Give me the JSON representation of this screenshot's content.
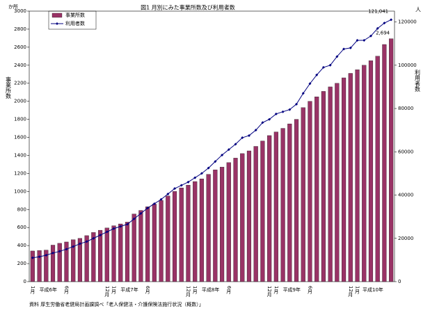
{
  "chart_data": {
    "type": "bar-line",
    "title": "図1 月別にみた事業所数及び利用者数",
    "y_unit": "か所",
    "y_label": "事業所数",
    "y2_unit": "人",
    "y2_label": "利用者数",
    "source": "資料 厚生労働省老健局計画課調べ「老人保健法・介護保険法施行状況（概数）」",
    "categories": [
      "1月",
      null,
      null,
      null,
      null,
      "6月",
      null,
      null,
      null,
      null,
      null,
      "12月",
      "1月",
      null,
      null,
      null,
      null,
      "6月",
      null,
      null,
      null,
      null,
      null,
      "12月",
      "1月",
      null,
      null,
      null,
      null,
      "6月",
      null,
      null,
      null,
      null,
      null,
      "12月",
      "1月",
      null,
      null,
      null,
      null,
      "6月",
      null,
      null,
      null,
      null,
      null,
      "12月",
      "1月",
      null,
      null,
      null,
      null,
      null
    ],
    "year_labels": [
      "平成6年",
      "平成7年",
      "平成8年",
      "平成9年",
      "平成10年"
    ],
    "series": [
      {
        "name": "事業所数",
        "type": "bar",
        "color": "#993366",
        "values": [
          340,
          345,
          350,
          405,
          425,
          440,
          465,
          480,
          510,
          545,
          570,
          595,
          620,
          640,
          660,
          750,
          790,
          830,
          860,
          900,
          950,
          1000,
          1040,
          1070,
          1110,
          1140,
          1190,
          1240,
          1270,
          1320,
          1370,
          1420,
          1450,
          1500,
          1560,
          1620,
          1660,
          1700,
          1750,
          1800,
          1930,
          2000,
          2050,
          2110,
          2160,
          2200,
          2260,
          2310,
          2350,
          2400,
          2450,
          2500,
          2630,
          2694
        ]
      },
      {
        "name": "利用者数",
        "type": "line",
        "axis": "y2",
        "color": "#000080",
        "values": [
          11000,
          11500,
          12200,
          13200,
          14000,
          15000,
          16200,
          17500,
          18500,
          20000,
          21500,
          23000,
          24500,
          25500,
          26500,
          29000,
          31500,
          34000,
          36000,
          38000,
          40500,
          43000,
          44500,
          46000,
          48000,
          50000,
          52500,
          55500,
          58500,
          61000,
          63500,
          66500,
          67500,
          70000,
          73500,
          75000,
          77500,
          78500,
          79500,
          82000,
          87000,
          91500,
          95500,
          99000,
          100000,
          104000,
          107500,
          108000,
          111500,
          111500,
          113500,
          117000,
          119500,
          121041
        ]
      }
    ],
    "annotations": [
      "121,041",
      "2,694"
    ],
    "ylim": [
      0,
      3000
    ],
    "yticks": [
      0,
      200,
      400,
      600,
      800,
      1000,
      1200,
      1400,
      1600,
      1800,
      2000,
      2200,
      2400,
      2600,
      2800,
      3000
    ],
    "y2lim": [
      0,
      125000
    ],
    "y2ticks": [
      0,
      20000,
      40000,
      60000,
      80000,
      100000,
      120000
    ]
  }
}
